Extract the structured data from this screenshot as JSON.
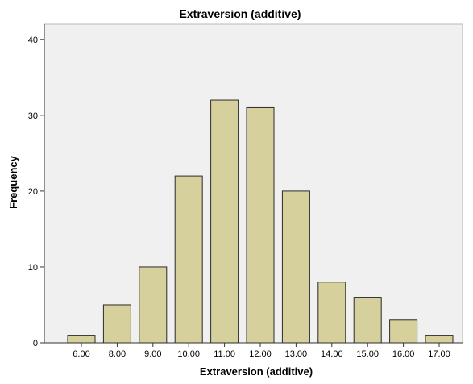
{
  "chart_data": {
    "type": "bar",
    "title": "Extraversion (additive)",
    "xlabel": "Extraversion (additive)",
    "ylabel": "Frequency",
    "categories": [
      "6.00",
      "8.00",
      "9.00",
      "10.00",
      "11.00",
      "12.00",
      "13.00",
      "14.00",
      "15.00",
      "16.00",
      "17.00"
    ],
    "values": [
      1,
      5,
      10,
      22,
      32,
      31,
      20,
      8,
      6,
      3,
      1
    ],
    "ylim": [
      0,
      42
    ],
    "yticks": [
      0,
      10,
      20,
      30,
      40
    ],
    "grid": false,
    "colors": {
      "bar_fill": "#d6d09c",
      "bar_stroke": "#2b2b2b",
      "plot_background": "#f0f0f0",
      "axis": "#333333",
      "text": "#000000"
    }
  }
}
